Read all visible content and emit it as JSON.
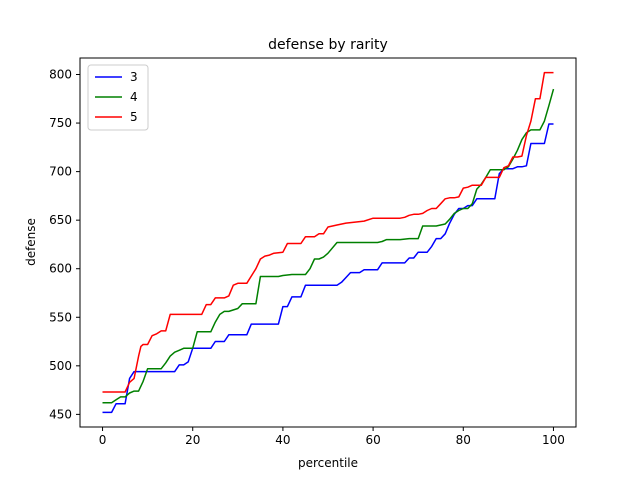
{
  "chart_data": {
    "type": "line",
    "title": "defense by rarity",
    "xlabel": "percentile",
    "ylabel": "defense",
    "xlim": [
      -5,
      105
    ],
    "ylim": [
      437,
      817
    ],
    "xticks": [
      0,
      20,
      40,
      60,
      80,
      100
    ],
    "yticks": [
      450,
      500,
      550,
      600,
      650,
      700,
      750,
      800
    ],
    "grid": false,
    "legend_position": "top-left",
    "series": [
      {
        "name": "3",
        "color": "#0000ff",
        "x": [
          0,
          2,
          3,
          5,
          6,
          7,
          8,
          9,
          10,
          12,
          14,
          16,
          17,
          18,
          19,
          20,
          22,
          24,
          25,
          27,
          28,
          30,
          32,
          33,
          35,
          37,
          39,
          40,
          41,
          42,
          43,
          44,
          45,
          47,
          49,
          51,
          52,
          53,
          54,
          55,
          56,
          57,
          58,
          60,
          61,
          62,
          64,
          66,
          67,
          68,
          69,
          70,
          71,
          72,
          73,
          74,
          75,
          76,
          77,
          78,
          79,
          80,
          81,
          82,
          83,
          84,
          85,
          86,
          87,
          88,
          89,
          90,
          91,
          92,
          93,
          94,
          95,
          96,
          97,
          98,
          99,
          100
        ],
        "y": [
          452,
          452,
          461,
          461,
          487,
          494,
          494,
          494,
          494,
          494,
          494,
          494,
          501,
          501,
          504,
          518,
          518,
          518,
          525,
          525,
          532,
          532,
          532,
          543,
          543,
          543,
          543,
          561,
          561,
          571,
          571,
          571,
          583,
          583,
          583,
          583,
          583,
          586,
          591,
          596,
          596,
          596,
          599,
          599,
          599,
          606,
          606,
          606,
          606,
          611,
          611,
          617,
          617,
          617,
          623,
          631,
          631,
          636,
          647,
          656,
          662,
          662,
          665,
          665,
          672,
          672,
          672,
          672,
          672,
          698,
          703,
          703,
          703,
          705,
          705,
          706,
          729,
          729,
          729,
          729,
          749,
          749
        ]
      },
      {
        "name": "4",
        "color": "#008000",
        "x": [
          0,
          2,
          3,
          4,
          5,
          6,
          7,
          8,
          9,
          10,
          12,
          13,
          14,
          15,
          16,
          17,
          18,
          19,
          20,
          21,
          22,
          23,
          24,
          25,
          26,
          27,
          28,
          30,
          31,
          32,
          34,
          35,
          37,
          39,
          40,
          42,
          44,
          45,
          46,
          47,
          48,
          49,
          50,
          52,
          54,
          56,
          58,
          60,
          61,
          62,
          63,
          64,
          66,
          68,
          69,
          70,
          71,
          72,
          73,
          74,
          75,
          76,
          77,
          78,
          79,
          80,
          81,
          82,
          83,
          84,
          85,
          86,
          87,
          88,
          89,
          90,
          91,
          92,
          93,
          94,
          95,
          96,
          97,
          98,
          99,
          100
        ],
        "y": [
          462,
          462,
          465,
          468,
          468,
          472,
          474,
          474,
          484,
          497,
          497,
          497,
          503,
          510,
          514,
          516,
          518,
          518,
          518,
          535,
          535,
          535,
          535,
          545,
          553,
          556,
          556,
          559,
          564,
          564,
          564,
          592,
          592,
          592,
          593,
          594,
          594,
          594,
          600,
          610,
          610,
          612,
          616,
          627,
          627,
          627,
          627,
          627,
          627,
          628,
          630,
          630,
          630,
          631,
          631,
          631,
          644,
          644,
          644,
          644,
          645,
          646,
          651,
          657,
          660,
          662,
          662,
          667,
          682,
          687,
          694,
          702,
          702,
          702,
          702,
          705,
          713,
          722,
          733,
          740,
          743,
          743,
          743,
          752,
          768,
          785
        ]
      },
      {
        "name": "5",
        "color": "#ff0000",
        "x": [
          0,
          2,
          4,
          5,
          6,
          7,
          8,
          8.5,
          9,
          10,
          11,
          12,
          13,
          14,
          15,
          16,
          18,
          20,
          22,
          23,
          24,
          25,
          27,
          28,
          29,
          30,
          32,
          34,
          35,
          36,
          37,
          38,
          40,
          41,
          42,
          44,
          45,
          46,
          47,
          48,
          49,
          50,
          52,
          54,
          56,
          58,
          60,
          62,
          64,
          65,
          66,
          67,
          68,
          69,
          70,
          71,
          72,
          73,
          74,
          75,
          76,
          77,
          78,
          79,
          80,
          81,
          82,
          83,
          84,
          85,
          86,
          87,
          88,
          89,
          90,
          91,
          92,
          93,
          94,
          95,
          96,
          97,
          98,
          99,
          100
        ],
        "y": [
          473,
          473,
          473,
          473,
          483,
          487,
          510,
          520,
          522,
          522,
          531,
          533,
          536,
          536,
          553,
          553,
          553,
          553,
          553,
          563,
          563,
          570,
          570,
          572,
          583,
          585,
          585,
          600,
          610,
          613,
          614,
          616,
          617,
          626,
          626,
          626,
          633,
          633,
          633,
          636,
          636,
          643,
          645,
          647,
          648,
          649,
          652,
          652,
          652,
          652,
          652,
          653,
          655,
          656,
          656,
          657,
          660,
          662,
          662,
          667,
          672,
          673,
          673,
          674,
          683,
          684,
          686,
          686,
          686,
          694,
          694,
          694,
          694,
          704,
          706,
          715,
          715,
          716,
          737,
          752,
          775,
          775,
          802,
          802,
          802
        ]
      }
    ]
  }
}
